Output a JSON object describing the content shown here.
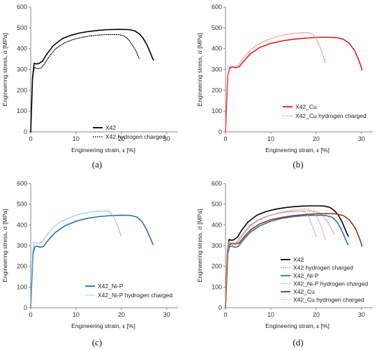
{
  "chart_data": [
    {
      "type": "line",
      "caption": "(a)",
      "xlabel": "Engineering strain, ε [%]",
      "ylabel": "Engineering stress, σ [MPa]",
      "xlim": [
        0,
        30
      ],
      "ylim": [
        0,
        600
      ],
      "xticks": [
        "0",
        "10",
        "20",
        "30"
      ],
      "yticks": [
        "0",
        "100",
        "200",
        "300",
        "400",
        "500",
        "600"
      ],
      "grid": false,
      "legend_position": "bottom-right",
      "series": [
        {
          "name": "X42",
          "color": "#000000",
          "dash": "solid",
          "x": [
            0,
            0.4,
            0.7,
            0.8,
            1.2,
            1.8,
            2.6,
            3.5,
            5,
            7,
            9,
            11,
            13,
            15,
            17,
            19,
            20.5,
            21.8,
            23,
            24,
            24.8,
            25.6,
            26.3,
            26.8,
            27.1
          ],
          "y": [
            0,
            260,
            318,
            330,
            326,
            328,
            340,
            372,
            415,
            448,
            465,
            476,
            483,
            488,
            491,
            492,
            492,
            491,
            485,
            470,
            450,
            420,
            385,
            358,
            345
          ]
        },
        {
          "name": "X42 hydrogen charged",
          "color": "#000000",
          "dash": "dotted",
          "x": [
            0,
            0.4,
            0.7,
            0.9,
            1.5,
            2.2,
            3,
            4,
            5.5,
            7.5,
            9.5,
            11.5,
            13.5,
            15.5,
            17.5,
            19.5,
            20.5,
            21.5,
            22.5,
            23.3,
            23.9
          ],
          "y": [
            0,
            250,
            300,
            310,
            303,
            306,
            325,
            360,
            400,
            428,
            445,
            455,
            462,
            466,
            468,
            467,
            462,
            445,
            415,
            385,
            352
          ]
        }
      ]
    },
    {
      "type": "line",
      "caption": "(b)",
      "xlabel": "Engineering strain, ε [%]",
      "ylabel": "Engineering stress, σ [MPa]",
      "xlim": [
        0,
        30
      ],
      "ylim": [
        0,
        600
      ],
      "xticks": [
        "0",
        "10",
        "20",
        "30"
      ],
      "yticks": [
        "0",
        "100",
        "200",
        "300",
        "400",
        "500",
        "600"
      ],
      "grid": false,
      "legend_position": "bottom-right",
      "series": [
        {
          "name": "X42_Cu",
          "color": "#e02020",
          "dash": "solid",
          "x": [
            0,
            0.5,
            0.9,
            1.5,
            2.2,
            3,
            4,
            5.5,
            7.5,
            10,
            12.5,
            15,
            17.5,
            20,
            22.5,
            24.5,
            26,
            27.3,
            28.5,
            29.3,
            29.9,
            30.1
          ],
          "y": [
            0,
            270,
            305,
            312,
            308,
            312,
            340,
            375,
            405,
            425,
            437,
            445,
            450,
            454,
            455,
            453,
            445,
            425,
            390,
            350,
            315,
            297
          ]
        },
        {
          "name": "X42_Cu hydrogen charged",
          "color": "#f08080",
          "dash": "dotted",
          "x": [
            0,
            0.4,
            0.8,
            1.3,
            2,
            2.8,
            4,
            5.5,
            7,
            9,
            11,
            13,
            15,
            17,
            18.5,
            19.5,
            20.3,
            21,
            21.6,
            22
          ],
          "y": [
            0,
            250,
            310,
            315,
            312,
            320,
            358,
            392,
            418,
            440,
            455,
            466,
            473,
            477,
            476,
            462,
            435,
            400,
            360,
            330
          ]
        }
      ]
    },
    {
      "type": "line",
      "caption": "(c)",
      "xlabel": "Engineering strain, ε [%]",
      "ylabel": "Engineering stress, σ [MPa]",
      "xlim": [
        0,
        30
      ],
      "ylim": [
        0,
        600
      ],
      "xticks": [
        "0",
        "10",
        "20",
        "30"
      ],
      "yticks": [
        "0",
        "100",
        "200",
        "300",
        "400",
        "500",
        "600"
      ],
      "grid": false,
      "legend_position": "bottom-right",
      "series": [
        {
          "name": "X42_Ni-P",
          "color": "#2e6db4",
          "dash": "solid",
          "x": [
            0,
            0.5,
            0.9,
            1.4,
            2,
            2.8,
            4,
            5.5,
            7.5,
            10,
            12.5,
            15,
            17.5,
            20,
            22,
            23.5,
            24.6,
            25.5,
            26.2,
            26.7,
            27
          ],
          "y": [
            0,
            260,
            295,
            298,
            292,
            296,
            330,
            365,
            395,
            418,
            432,
            440,
            445,
            447,
            446,
            438,
            415,
            380,
            345,
            320,
            305
          ]
        },
        {
          "name": "X42_Ni-P hydrogen charged",
          "color": "#7fb3e0",
          "dash": "dotted",
          "x": [
            0,
            0.4,
            0.7,
            1.2,
            1.8,
            2.5,
            3.5,
            5,
            6.5,
            8.5,
            10.5,
            12.5,
            14.5,
            16.5,
            17.5,
            18.3,
            19,
            19.6,
            20
          ],
          "y": [
            0,
            260,
            318,
            312,
            310,
            318,
            350,
            388,
            415,
            435,
            450,
            460,
            466,
            468,
            462,
            440,
            405,
            370,
            345
          ]
        }
      ]
    },
    {
      "type": "line",
      "caption": "(d)",
      "xlabel": "Engineering strain, ε [%]",
      "ylabel": "Engineering stress, σ [MPa]",
      "xlim": [
        0,
        30
      ],
      "ylim": [
        0,
        600
      ],
      "xticks": [
        "0",
        "10",
        "20",
        "30"
      ],
      "yticks": [
        "0",
        "100",
        "200",
        "300",
        "400",
        "500",
        "600"
      ],
      "grid": false,
      "legend_position": "bottom-right",
      "series": [
        {
          "name": "X42",
          "color": "#000000",
          "dash": "solid",
          "x": [
            0,
            0.4,
            0.7,
            0.8,
            1.2,
            1.8,
            2.6,
            3.5,
            5,
            7,
            9,
            11,
            13,
            15,
            17,
            19,
            20.5,
            21.8,
            23,
            24,
            24.8,
            25.6,
            26.3,
            26.8,
            27.1
          ],
          "y": [
            0,
            260,
            318,
            330,
            326,
            328,
            340,
            372,
            415,
            448,
            465,
            476,
            483,
            488,
            491,
            492,
            492,
            491,
            485,
            470,
            450,
            420,
            385,
            358,
            345
          ]
        },
        {
          "name": "X42 hydrogen charged",
          "color": "#b98b7e",
          "dash": "dotted",
          "x": [
            0,
            0.4,
            0.7,
            0.9,
            1.5,
            2.2,
            3,
            4,
            5.5,
            7.5,
            9.5,
            11.5,
            13.5,
            15.5,
            17.5,
            19.5,
            20.5,
            21.5,
            22.5,
            23.3,
            23.9
          ],
          "y": [
            0,
            250,
            300,
            310,
            303,
            306,
            325,
            360,
            400,
            428,
            445,
            455,
            462,
            466,
            468,
            467,
            462,
            445,
            415,
            385,
            352
          ]
        },
        {
          "name": "X42_Ni-P",
          "color": "#2e6db4",
          "dash": "solid",
          "x": [
            0,
            0.5,
            0.9,
            1.4,
            2,
            2.8,
            4,
            5.5,
            7.5,
            10,
            12.5,
            15,
            17.5,
            20,
            22,
            23.5,
            24.6,
            25.5,
            26.2,
            26.7,
            27
          ],
          "y": [
            0,
            260,
            295,
            298,
            292,
            296,
            330,
            365,
            395,
            418,
            432,
            440,
            445,
            447,
            446,
            438,
            415,
            380,
            345,
            320,
            305
          ]
        },
        {
          "name": "X42_Ni-P hydrogen charged",
          "color": "#7fb3e0",
          "dash": "dotted",
          "x": [
            0,
            0.4,
            0.7,
            1.2,
            1.8,
            2.5,
            3.5,
            5,
            6.5,
            8.5,
            10.5,
            12.5,
            14.5,
            16.5,
            17.5,
            18.3,
            19,
            19.6,
            20
          ],
          "y": [
            0,
            260,
            318,
            312,
            310,
            318,
            350,
            388,
            415,
            435,
            450,
            460,
            466,
            468,
            462,
            440,
            405,
            370,
            345
          ]
        },
        {
          "name": "X42_Cu",
          "color": "#8b3a1a",
          "dash": "solid",
          "x": [
            0,
            0.5,
            0.9,
            1.5,
            2.2,
            3,
            4,
            5.5,
            7.5,
            10,
            12.5,
            15,
            17.5,
            20,
            22.5,
            24.5,
            26,
            27.3,
            28.5,
            29.3,
            29.9,
            30.1
          ],
          "y": [
            0,
            270,
            305,
            312,
            308,
            312,
            340,
            375,
            405,
            425,
            437,
            445,
            450,
            454,
            455,
            453,
            445,
            425,
            390,
            350,
            315,
            297
          ]
        },
        {
          "name": "X42_Cu hydrogen charged",
          "color": "#f0a090",
          "dash": "dotted",
          "x": [
            0,
            0.4,
            0.8,
            1.3,
            2,
            2.8,
            4,
            5.5,
            7,
            9,
            11,
            13,
            15,
            17,
            18.5,
            19.5,
            20.3,
            21,
            21.6,
            22
          ],
          "y": [
            0,
            250,
            310,
            315,
            312,
            320,
            358,
            392,
            418,
            440,
            455,
            466,
            473,
            477,
            476,
            462,
            435,
            400,
            360,
            330
          ]
        }
      ]
    }
  ]
}
